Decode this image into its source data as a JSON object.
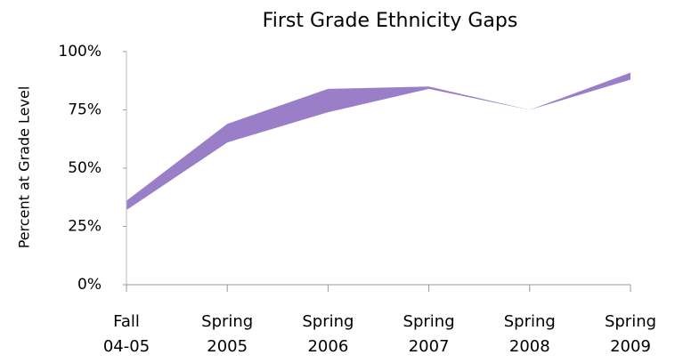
{
  "chart_data": {
    "type": "area",
    "title": "First Grade Ethnicity Gaps",
    "y_label": "Percent at Grade Level",
    "categories": [
      [
        "Fall",
        "04-05"
      ],
      [
        "Spring",
        "2005"
      ],
      [
        "Spring",
        "2006"
      ],
      [
        "Spring",
        "2007"
      ],
      [
        "Spring",
        "2008"
      ],
      [
        "Spring",
        "2009"
      ]
    ],
    "series": [
      {
        "color": "#9a7fc8",
        "values": [
          36,
          69,
          84,
          85,
          75,
          91
        ]
      },
      {
        "color": "#ffffff",
        "values": [
          32,
          61,
          74,
          84,
          75,
          88
        ]
      }
    ],
    "ylim": [
      0,
      100
    ],
    "yticks": [
      {
        "value": 0,
        "label": "0%"
      },
      {
        "value": 25,
        "label": "25%"
      },
      {
        "value": 50,
        "label": "50%"
      },
      {
        "value": 75,
        "label": "75%"
      },
      {
        "value": 100,
        "label": "100%"
      }
    ],
    "grid": false
  }
}
